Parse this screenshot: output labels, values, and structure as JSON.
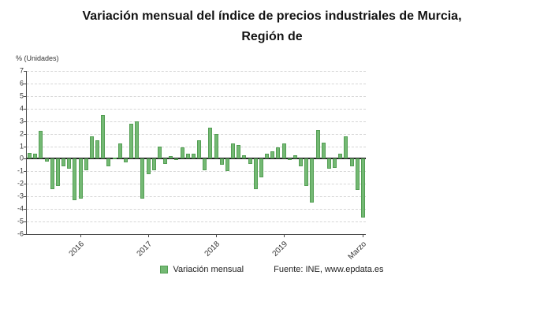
{
  "header": {
    "title_lines": [
      "Variación mensual del índice de precios industriales de Murcia,",
      "Región de"
    ]
  },
  "axes": {
    "y_unit_label": "% (Unidades)"
  },
  "legend": {
    "series_label": "Variación mensual",
    "source": "Fuente: INE, www.epdata.es",
    "swatch_color": "#74b974"
  },
  "chart_data": {
    "type": "bar",
    "title": "Variación mensual del índice de precios industriales de Murcia, Región de",
    "ylabel": "% (Unidades)",
    "xlabel": "",
    "ylim": [
      -6,
      7
    ],
    "yticks": [
      7,
      6,
      5,
      4,
      3,
      2,
      1,
      0,
      -1,
      -2,
      -3,
      -4,
      -5,
      -6
    ],
    "grid": "dashed-horizontal",
    "bar_color": "#74b974",
    "legend_entries": [
      "Variación mensual"
    ],
    "legend_position": "bottom",
    "source": "Fuente: INE, www.epdata.es",
    "xticks": [
      {
        "label": "2016",
        "index": 9
      },
      {
        "label": "2017",
        "index": 21
      },
      {
        "label": "2018",
        "index": 33
      },
      {
        "label": "2019",
        "index": 45
      },
      {
        "label": "Marzo",
        "index": 59
      }
    ],
    "values": [
      0.5,
      0.4,
      2.2,
      -0.2,
      -2.4,
      -2.2,
      -0.6,
      -0.8,
      -3.3,
      -3.2,
      -0.9,
      1.8,
      1.5,
      3.5,
      -0.6,
      0.1,
      1.2,
      -0.3,
      2.8,
      3.0,
      -3.2,
      -1.2,
      -0.9,
      1.0,
      -0.4,
      0.2,
      -0.1,
      0.9,
      0.4,
      0.4,
      1.5,
      -0.9,
      2.5,
      2.0,
      -0.5,
      -1.0,
      1.2,
      1.1,
      0.3,
      -0.4,
      -2.4,
      -1.5,
      0.4,
      0.6,
      0.9,
      1.2,
      -0.1,
      0.3,
      -0.6,
      -2.2,
      -3.5,
      2.3,
      1.3,
      -0.8,
      -0.7,
      0.4,
      1.8,
      -0.6,
      -2.5,
      -4.7
    ]
  }
}
